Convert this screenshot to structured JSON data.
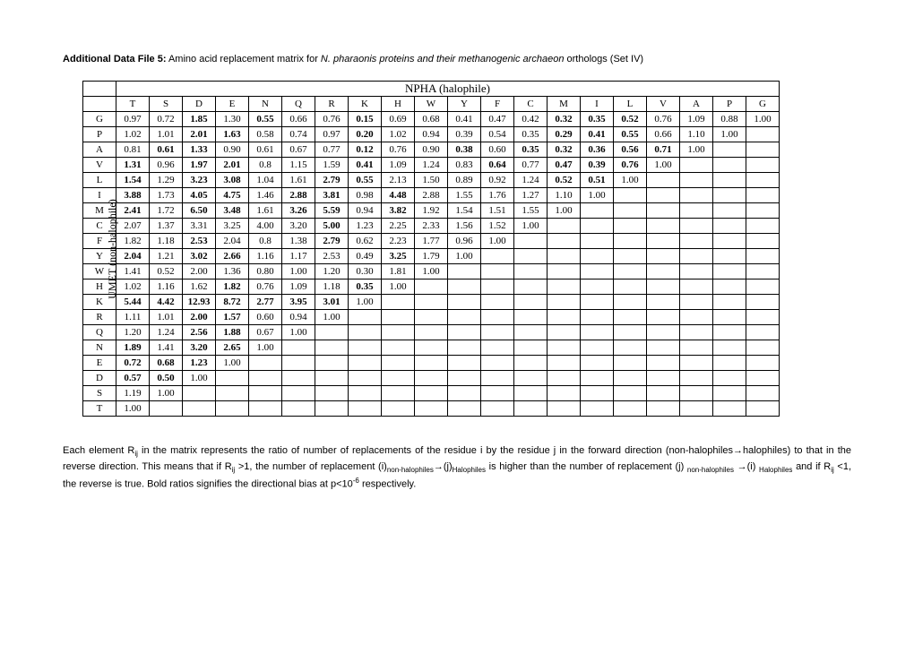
{
  "title_bold": "Additional Data File 5:",
  "title_plain1": " Amino acid replacement matrix for ",
  "title_italic": "N. pharaonis proteins and their methanogenic archaeon",
  "title_plain2": " orthologs (Set IV)",
  "top_header": "NPHA (halophile)",
  "side_header": "UMET (non-halophile)",
  "cols": [
    "T",
    "S",
    "D",
    "E",
    "N",
    "Q",
    "R",
    "K",
    "H",
    "W",
    "Y",
    "F",
    "C",
    "M",
    "I",
    "L",
    "V",
    "A",
    "P",
    "G"
  ],
  "rows": [
    {
      "h": "G",
      "c": [
        [
          "0.97",
          0
        ],
        [
          "0.72",
          0
        ],
        [
          "1.85",
          1
        ],
        [
          "1.30",
          0
        ],
        [
          "0.55",
          1
        ],
        [
          "0.66",
          0
        ],
        [
          "0.76",
          0
        ],
        [
          "0.15",
          1
        ],
        [
          "0.69",
          0
        ],
        [
          "0.68",
          0
        ],
        [
          "0.41",
          0
        ],
        [
          "0.47",
          0
        ],
        [
          "0.42",
          0
        ],
        [
          "0.32",
          1
        ],
        [
          "0.35",
          1
        ],
        [
          "0.52",
          1
        ],
        [
          "0.76",
          0
        ],
        [
          "1.09",
          0
        ],
        [
          "0.88",
          0
        ],
        [
          "1.00",
          0
        ]
      ]
    },
    {
      "h": "P",
      "c": [
        [
          "1.02",
          0
        ],
        [
          "1.01",
          0
        ],
        [
          "2.01",
          1
        ],
        [
          "1.63",
          1
        ],
        [
          "0.58",
          0
        ],
        [
          "0.74",
          0
        ],
        [
          "0.97",
          0
        ],
        [
          "0.20",
          1
        ],
        [
          "1.02",
          0
        ],
        [
          "0.94",
          0
        ],
        [
          "0.39",
          0
        ],
        [
          "0.54",
          0
        ],
        [
          "0.35",
          0
        ],
        [
          "0.29",
          1
        ],
        [
          "0.41",
          1
        ],
        [
          "0.55",
          1
        ],
        [
          "0.66",
          0
        ],
        [
          "1.10",
          0
        ],
        [
          "1.00",
          0
        ]
      ]
    },
    {
      "h": "A",
      "c": [
        [
          "0.81",
          0
        ],
        [
          "0.61",
          1
        ],
        [
          "1.33",
          1
        ],
        [
          "0.90",
          0
        ],
        [
          "0.61",
          0
        ],
        [
          "0.67",
          0
        ],
        [
          "0.77",
          0
        ],
        [
          "0.12",
          1
        ],
        [
          "0.76",
          0
        ],
        [
          "0.90",
          0
        ],
        [
          "0.38",
          1
        ],
        [
          "0.60",
          0
        ],
        [
          "0.35",
          1
        ],
        [
          "0.32",
          1
        ],
        [
          "0.36",
          1
        ],
        [
          "0.56",
          1
        ],
        [
          "0.71",
          1
        ],
        [
          "1.00",
          0
        ]
      ]
    },
    {
      "h": "V",
      "c": [
        [
          "1.31",
          1
        ],
        [
          "0.96",
          0
        ],
        [
          "1.97",
          1
        ],
        [
          "2.01",
          1
        ],
        [
          "0.8",
          0
        ],
        [
          "1.15",
          0
        ],
        [
          "1.59",
          0
        ],
        [
          "0.41",
          1
        ],
        [
          "1.09",
          0
        ],
        [
          "1.24",
          0
        ],
        [
          "0.83",
          0
        ],
        [
          "0.64",
          1
        ],
        [
          "0.77",
          0
        ],
        [
          "0.47",
          1
        ],
        [
          "0.39",
          1
        ],
        [
          "0.76",
          1
        ],
        [
          "1.00",
          0
        ]
      ]
    },
    {
      "h": "L",
      "c": [
        [
          "1.54",
          1
        ],
        [
          "1.29",
          0
        ],
        [
          "3.23",
          1
        ],
        [
          "3.08",
          1
        ],
        [
          "1.04",
          0
        ],
        [
          "1.61",
          0
        ],
        [
          "2.79",
          1
        ],
        [
          "0.55",
          1
        ],
        [
          "2.13",
          0
        ],
        [
          "1.50",
          0
        ],
        [
          "0.89",
          0
        ],
        [
          "0.92",
          0
        ],
        [
          "1.24",
          0
        ],
        [
          "0.52",
          1
        ],
        [
          "0.51",
          1
        ],
        [
          "1.00",
          0
        ]
      ]
    },
    {
      "h": "I",
      "c": [
        [
          "3.88",
          1
        ],
        [
          "1.73",
          0
        ],
        [
          "4.05",
          1
        ],
        [
          "4.75",
          1
        ],
        [
          "1.46",
          0
        ],
        [
          "2.88",
          1
        ],
        [
          "3.81",
          1
        ],
        [
          "0.98",
          0
        ],
        [
          "4.48",
          1
        ],
        [
          "2.88",
          0
        ],
        [
          "1.55",
          0
        ],
        [
          "1.76",
          0
        ],
        [
          "1.27",
          0
        ],
        [
          "1.10",
          0
        ],
        [
          "1.00",
          0
        ]
      ]
    },
    {
      "h": "M",
      "c": [
        [
          "2.41",
          1
        ],
        [
          "1.72",
          0
        ],
        [
          "6.50",
          1
        ],
        [
          "3.48",
          1
        ],
        [
          "1.61",
          0
        ],
        [
          "3.26",
          1
        ],
        [
          "5.59",
          1
        ],
        [
          "0.94",
          0
        ],
        [
          "3.82",
          1
        ],
        [
          "1.92",
          0
        ],
        [
          "1.54",
          0
        ],
        [
          "1.51",
          0
        ],
        [
          "1.55",
          0
        ],
        [
          "1.00",
          0
        ]
      ]
    },
    {
      "h": "C",
      "c": [
        [
          "2.07",
          0
        ],
        [
          "1.37",
          0
        ],
        [
          "3.31",
          0
        ],
        [
          "3.25",
          0
        ],
        [
          "4.00",
          0
        ],
        [
          "3.20",
          0
        ],
        [
          "5.00",
          1
        ],
        [
          "1.23",
          0
        ],
        [
          "2.25",
          0
        ],
        [
          "2.33",
          0
        ],
        [
          "1.56",
          0
        ],
        [
          "1.52",
          0
        ],
        [
          "1.00",
          0
        ]
      ]
    },
    {
      "h": "F",
      "c": [
        [
          "1.82",
          0
        ],
        [
          "1.18",
          0
        ],
        [
          "2.53",
          1
        ],
        [
          "2.04",
          0
        ],
        [
          "0.8",
          0
        ],
        [
          "1.38",
          0
        ],
        [
          "2.79",
          1
        ],
        [
          "0.62",
          0
        ],
        [
          "2.23",
          0
        ],
        [
          "1.77",
          0
        ],
        [
          "0.96",
          0
        ],
        [
          "1.00",
          0
        ]
      ]
    },
    {
      "h": "Y",
      "c": [
        [
          "2.04",
          1
        ],
        [
          "1.21",
          0
        ],
        [
          "3.02",
          1
        ],
        [
          "2.66",
          1
        ],
        [
          "1.16",
          0
        ],
        [
          "1.17",
          0
        ],
        [
          "2.53",
          0
        ],
        [
          "0.49",
          0
        ],
        [
          "3.25",
          1
        ],
        [
          "1.79",
          0
        ],
        [
          "1.00",
          0
        ]
      ]
    },
    {
      "h": "W",
      "c": [
        [
          "1.41",
          0
        ],
        [
          "0.52",
          0
        ],
        [
          "2.00",
          0
        ],
        [
          "1.36",
          0
        ],
        [
          "0.80",
          0
        ],
        [
          "1.00",
          0
        ],
        [
          "1.20",
          0
        ],
        [
          "0.30",
          0
        ],
        [
          "1.81",
          0
        ],
        [
          "1.00",
          0
        ]
      ]
    },
    {
      "h": "H",
      "c": [
        [
          "1.02",
          0
        ],
        [
          "1.16",
          0
        ],
        [
          "1.62",
          0
        ],
        [
          "1.82",
          1
        ],
        [
          "0.76",
          0
        ],
        [
          "1.09",
          0
        ],
        [
          "1.18",
          0
        ],
        [
          "0.35",
          1
        ],
        [
          "1.00",
          0
        ]
      ]
    },
    {
      "h": "K",
      "c": [
        [
          "5.44",
          1
        ],
        [
          "4.42",
          1
        ],
        [
          "12.93",
          1
        ],
        [
          "8.72",
          1
        ],
        [
          "2.77",
          1
        ],
        [
          "3.95",
          1
        ],
        [
          "3.01",
          1
        ],
        [
          "1.00",
          0
        ]
      ]
    },
    {
      "h": "R",
      "c": [
        [
          "1.11",
          0
        ],
        [
          "1.01",
          0
        ],
        [
          "2.00",
          1
        ],
        [
          "1.57",
          1
        ],
        [
          "0.60",
          0
        ],
        [
          "0.94",
          0
        ],
        [
          "1.00",
          0
        ]
      ]
    },
    {
      "h": "Q",
      "c": [
        [
          "1.20",
          0
        ],
        [
          "1.24",
          0
        ],
        [
          "2.56",
          1
        ],
        [
          "1.88",
          1
        ],
        [
          "0.67",
          0
        ],
        [
          "1.00",
          0
        ]
      ]
    },
    {
      "h": "N",
      "c": [
        [
          "1.89",
          1
        ],
        [
          "1.41",
          0
        ],
        [
          "3.20",
          1
        ],
        [
          "2.65",
          1
        ],
        [
          "1.00",
          0
        ]
      ]
    },
    {
      "h": "E",
      "c": [
        [
          "0.72",
          1
        ],
        [
          "0.68",
          1
        ],
        [
          "1.23",
          1
        ],
        [
          "1.00",
          0
        ]
      ]
    },
    {
      "h": "D",
      "c": [
        [
          "0.57",
          1
        ],
        [
          "0.50",
          1
        ],
        [
          "1.00",
          0
        ]
      ]
    },
    {
      "h": "S",
      "c": [
        [
          "1.19",
          0
        ],
        [
          "1.00",
          0
        ]
      ]
    },
    {
      "h": "T",
      "c": [
        [
          "1.00",
          0
        ]
      ]
    }
  ],
  "caption_parts": {
    "p1": "Each element R",
    "p2": " in the matrix represents the ratio of number of replacements of the residue i by the residue j in the forward direction (non-halophiles→halophiles) to that in the reverse direction. This means that if  R",
    "p3": " >1,  the number of replacement (i)",
    "p4": "→(j)",
    "p5": "  is higher than the number of replacement  (j) ",
    "p6": " →(i) ",
    "p7": " and if R",
    "p8": " <1, the reverse is true. Bold ratios signifies the directional bias at p<10",
    "p9": " respectively.",
    "sub_ij": "ij",
    "sub_nonhalo": "non-halophiles",
    "sub_halo": "Halophiles",
    "sup_neg6": "-6"
  }
}
